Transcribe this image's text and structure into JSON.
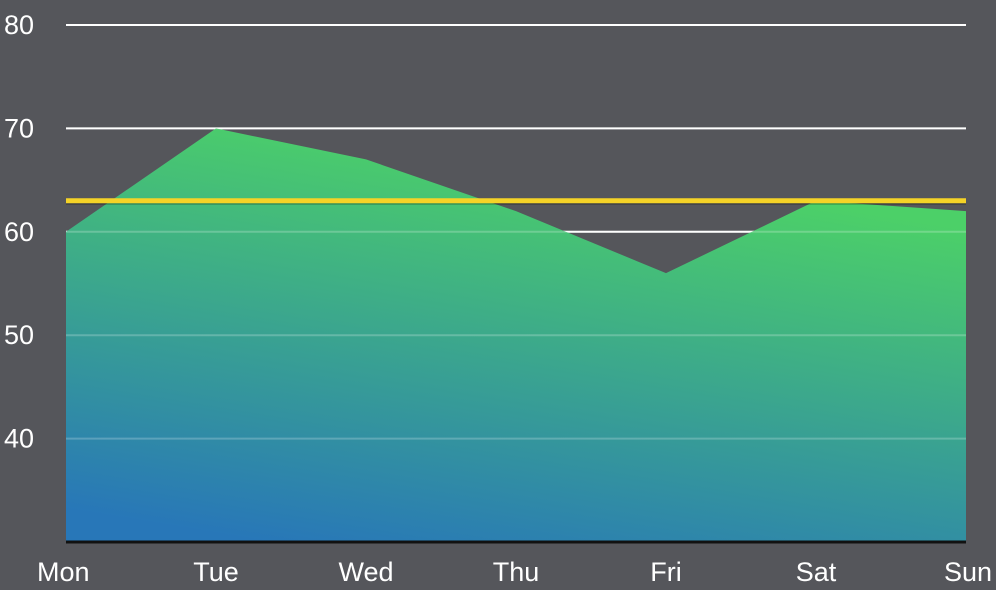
{
  "chart_data": {
    "type": "area",
    "categories": [
      "Mon",
      "Tue",
      "Wed",
      "Thu",
      "Fri",
      "Sat",
      "Sun"
    ],
    "series": [
      {
        "values": [
          60,
          70,
          67,
          62,
          56,
          63,
          62
        ]
      }
    ],
    "reference_line": {
      "value": 63,
      "color": "#f5d327"
    },
    "y_ticks": [
      "40",
      "50",
      "60",
      "70",
      "80"
    ],
    "ylim": [
      30,
      80
    ],
    "grid": true,
    "legend": "none",
    "colors": {
      "background": "#55565b",
      "gradient_top": "#4cd068",
      "gradient_bottom": "#2877b8",
      "grid": "#ffffff",
      "axis": "#111111"
    }
  }
}
